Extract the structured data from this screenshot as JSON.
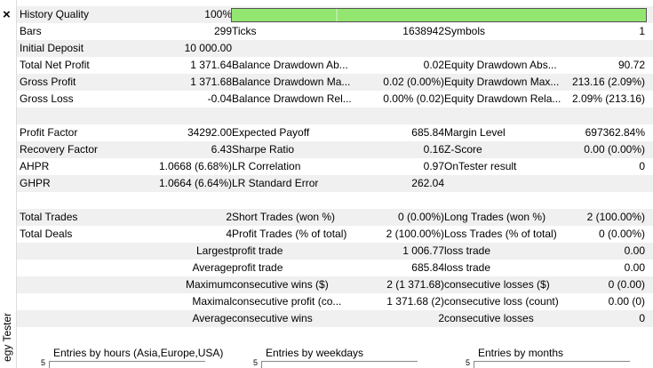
{
  "sidebar": {
    "close": "×",
    "label": "egy Tester"
  },
  "sections": [
    [
      [
        {
          "label": "History Quality",
          "value": "100%"
        }
      ],
      [
        {
          "label": "Bars",
          "value": "299"
        },
        {
          "label": "Ticks",
          "value": "1638942"
        },
        {
          "label": "Symbols",
          "value": "1"
        }
      ],
      [
        {
          "label": "Initial Deposit",
          "value": "10 000.00"
        }
      ],
      [
        {
          "label": "Total Net Profit",
          "value": "1 371.64"
        },
        {
          "label": "Balance Drawdown Ab...",
          "value": "0.02"
        },
        {
          "label": "Equity Drawdown Abs...",
          "value": "90.72"
        }
      ],
      [
        {
          "label": "Gross Profit",
          "value": "1 371.68"
        },
        {
          "label": "Balance Drawdown Ma...",
          "value": "0.02 (0.00%)"
        },
        {
          "label": "Equity Drawdown Max...",
          "value": "213.16 (2.09%)"
        }
      ],
      [
        {
          "label": "Gross Loss",
          "value": "-0.04"
        },
        {
          "label": "Balance Drawdown Rel...",
          "value": "0.00% (0.02)"
        },
        {
          "label": "Equity Drawdown Rela...",
          "value": "2.09% (213.16)"
        }
      ]
    ],
    [
      [
        {
          "label": "Profit Factor",
          "value": "34292.00"
        },
        {
          "label": "Expected Payoff",
          "value": "685.84"
        },
        {
          "label": "Margin Level",
          "value": "697362.84%"
        }
      ],
      [
        {
          "label": "Recovery Factor",
          "value": "6.43"
        },
        {
          "label": "Sharpe Ratio",
          "value": "0.16"
        },
        {
          "label": "Z-Score",
          "value": "0.00 (0.00%)"
        }
      ],
      [
        {
          "label": "AHPR",
          "value": "1.0668 (6.68%)"
        },
        {
          "label": "LR Correlation",
          "value": "0.97"
        },
        {
          "label": "OnTester result",
          "value": "0"
        }
      ],
      [
        {
          "label": "GHPR",
          "value": "1.0664 (6.64%)"
        },
        {
          "label": "LR Standard Error",
          "value": "262.04"
        }
      ]
    ],
    [
      [
        {
          "label": "Total Trades",
          "value": "2"
        },
        {
          "label": "Short Trades (won %)",
          "value": "0 (0.00%)"
        },
        {
          "label": "Long Trades (won %)",
          "value": "2 (100.00%)"
        }
      ],
      [
        {
          "label": "Total Deals",
          "value": "4"
        },
        {
          "label": "Profit Trades (% of total)",
          "value": "2 (100.00%)"
        },
        {
          "label": "Loss Trades (% of total)",
          "value": "0 (0.00%)"
        }
      ],
      [
        {
          "label": "Largest"
        },
        {
          "label": "profit trade",
          "value": "1 006.77"
        },
        {
          "label": "loss trade",
          "value": "0.00"
        }
      ],
      [
        {
          "label": "Average"
        },
        {
          "label": "profit trade",
          "value": "685.84"
        },
        {
          "label": "loss trade",
          "value": "0.00"
        }
      ],
      [
        {
          "label": "Maximum"
        },
        {
          "label": "consecutive wins ($)",
          "value": "2 (1 371.68)"
        },
        {
          "label": "consecutive losses ($)",
          "value": "0 (0.00)"
        }
      ],
      [
        {
          "label": "Maximal"
        },
        {
          "label": "consecutive profit (co...",
          "value": "1 371.68 (2)"
        },
        {
          "label": "consecutive loss (count)",
          "value": "0.00 (0)"
        }
      ],
      [
        {
          "label": "Average"
        },
        {
          "label": "consecutive wins",
          "value": "2"
        },
        {
          "label": "consecutive losses",
          "value": "0"
        }
      ]
    ]
  ],
  "charts": [
    {
      "title": "Entries by hours (Asia,Europe,USA)",
      "ytick": 5
    },
    {
      "title": "Entries by weekdays",
      "ytick": 5
    },
    {
      "title": "Entries by months",
      "ytick": 5
    }
  ]
}
